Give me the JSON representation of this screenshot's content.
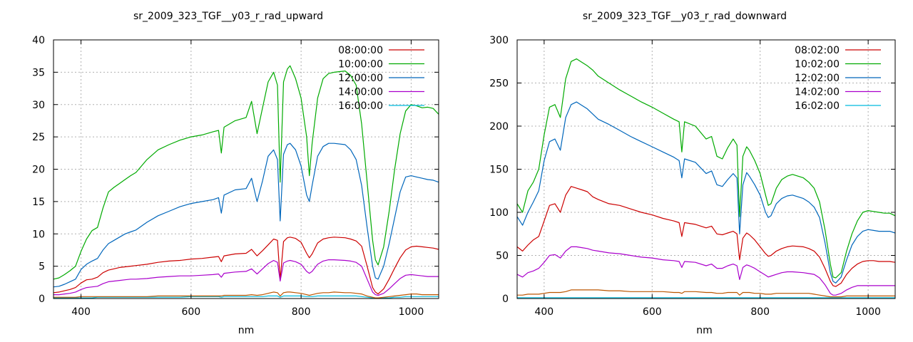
{
  "chart_data": [
    {
      "type": "line",
      "title": "sr_2009_323_TGF__y03_r_rad_upward",
      "xlabel": "nm",
      "ylabel": "",
      "xlim": [
        350,
        1050
      ],
      "ylim": [
        0,
        40
      ],
      "xticks": [
        400,
        600,
        800,
        1000
      ],
      "yticks": [
        0,
        5,
        10,
        15,
        20,
        25,
        30,
        35,
        40
      ],
      "grid": true,
      "legend_position": "top-right",
      "x": [
        350,
        360,
        370,
        380,
        390,
        400,
        410,
        420,
        430,
        440,
        450,
        460,
        470,
        480,
        490,
        500,
        520,
        540,
        560,
        580,
        600,
        620,
        640,
        650,
        655,
        660,
        680,
        700,
        710,
        720,
        730,
        740,
        750,
        757,
        762,
        768,
        775,
        780,
        790,
        800,
        810,
        815,
        820,
        830,
        840,
        850,
        860,
        880,
        890,
        900,
        910,
        920,
        930,
        935,
        940,
        950,
        960,
        970,
        980,
        990,
        1000,
        1010,
        1020,
        1030,
        1040,
        1050
      ],
      "series": [
        {
          "name": "08:00:00",
          "color": "#cc0000",
          "values": [
            0.9,
            1.0,
            1.2,
            1.4,
            1.7,
            2.4,
            2.9,
            3.0,
            3.3,
            4.0,
            4.4,
            4.6,
            4.8,
            4.9,
            5.0,
            5.1,
            5.3,
            5.6,
            5.8,
            5.9,
            6.1,
            6.2,
            6.4,
            6.5,
            5.7,
            6.6,
            6.9,
            7.0,
            7.6,
            6.6,
            7.4,
            8.3,
            9.2,
            9.0,
            2.9,
            8.8,
            9.4,
            9.5,
            9.3,
            8.7,
            7.0,
            6.3,
            6.9,
            8.6,
            9.2,
            9.4,
            9.5,
            9.4,
            9.2,
            8.9,
            8.1,
            5.0,
            1.7,
            1.0,
            0.7,
            1.5,
            3.0,
            4.7,
            6.3,
            7.5,
            8.0,
            8.1,
            8.0,
            7.9,
            7.8,
            7.6
          ]
        },
        {
          "name": "10:00:00",
          "color": "#00aa00",
          "values": [
            3.0,
            3.2,
            3.7,
            4.3,
            5.0,
            7.3,
            9.2,
            10.5,
            11.0,
            14.0,
            16.5,
            17.2,
            17.8,
            18.4,
            19.0,
            19.5,
            21.5,
            23.0,
            23.8,
            24.5,
            25.0,
            25.3,
            25.8,
            26.0,
            22.5,
            26.5,
            27.5,
            28.0,
            30.5,
            25.5,
            29.5,
            33.5,
            35.0,
            33.0,
            18.0,
            33.5,
            35.5,
            36.0,
            34.0,
            31.0,
            25.0,
            19.0,
            24.0,
            31.0,
            34.0,
            34.8,
            35.0,
            35.2,
            34.5,
            33.0,
            27.0,
            18.0,
            9.0,
            6.0,
            5.2,
            8.0,
            13.5,
            20.0,
            25.5,
            29.0,
            30.0,
            29.8,
            29.5,
            29.6,
            29.4,
            28.5
          ]
        },
        {
          "name": "12:00:00",
          "color": "#0066bb",
          "values": [
            1.8,
            1.9,
            2.2,
            2.6,
            3.0,
            4.5,
            5.3,
            5.8,
            6.2,
            7.5,
            8.5,
            9.0,
            9.5,
            10.0,
            10.3,
            10.6,
            11.8,
            12.8,
            13.5,
            14.2,
            14.7,
            15.0,
            15.3,
            15.6,
            13.2,
            16.0,
            16.8,
            17.0,
            18.6,
            15.0,
            18.2,
            22.0,
            23.0,
            21.5,
            12.0,
            22.3,
            23.8,
            24.0,
            23.0,
            20.5,
            16.0,
            15.0,
            17.5,
            22.0,
            23.5,
            24.0,
            24.0,
            23.8,
            23.0,
            21.5,
            17.5,
            11.0,
            5.0,
            3.2,
            3.0,
            5.0,
            8.5,
            12.5,
            16.5,
            18.8,
            19.0,
            18.8,
            18.6,
            18.4,
            18.3,
            18.0
          ]
        },
        {
          "name": "14:00:00",
          "color": "#aa00cc",
          "values": [
            0.6,
            0.6,
            0.7,
            0.8,
            1.0,
            1.4,
            1.7,
            1.8,
            1.9,
            2.3,
            2.6,
            2.7,
            2.8,
            2.9,
            3.0,
            3.0,
            3.1,
            3.3,
            3.4,
            3.5,
            3.5,
            3.6,
            3.7,
            3.8,
            3.3,
            3.9,
            4.1,
            4.2,
            4.6,
            3.8,
            4.6,
            5.4,
            5.9,
            5.6,
            2.7,
            5.5,
            5.8,
            5.9,
            5.7,
            5.3,
            4.2,
            3.9,
            4.2,
            5.3,
            5.8,
            6.0,
            6.0,
            5.9,
            5.8,
            5.6,
            5.0,
            3.0,
            1.0,
            0.6,
            0.5,
            0.8,
            1.5,
            2.3,
            3.1,
            3.6,
            3.7,
            3.6,
            3.5,
            3.4,
            3.4,
            3.4
          ]
        },
        {
          "name": "16:00:00",
          "color": "#00bbdd",
          "values": [
            0.1,
            0.1,
            0.1,
            0.1,
            0.1,
            0.1,
            0.1,
            0.1,
            0.2,
            0.2,
            0.2,
            0.2,
            0.2,
            0.2,
            0.2,
            0.2,
            0.2,
            0.2,
            0.2,
            0.2,
            0.3,
            0.3,
            0.3,
            0.3,
            0.2,
            0.3,
            0.3,
            0.3,
            0.3,
            0.3,
            0.3,
            0.4,
            0.4,
            0.4,
            0.2,
            0.4,
            0.4,
            0.4,
            0.4,
            0.4,
            0.3,
            0.3,
            0.3,
            0.4,
            0.4,
            0.4,
            0.4,
            0.4,
            0.4,
            0.4,
            0.3,
            0.2,
            0.1,
            0.1,
            0.1,
            0.1,
            0.1,
            0.2,
            0.2,
            0.3,
            0.3,
            0.3,
            0.3,
            0.3,
            0.3,
            0.3
          ]
        },
        {
          "name": "",
          "color": "#bb5500",
          "values": [
            0.2,
            0.2,
            0.2,
            0.2,
            0.2,
            0.3,
            0.3,
            0.3,
            0.3,
            0.3,
            0.3,
            0.3,
            0.3,
            0.3,
            0.3,
            0.3,
            0.3,
            0.4,
            0.4,
            0.4,
            0.4,
            0.4,
            0.4,
            0.4,
            0.4,
            0.5,
            0.5,
            0.5,
            0.6,
            0.5,
            0.6,
            0.8,
            1.0,
            0.9,
            0.4,
            0.9,
            1.0,
            1.0,
            0.9,
            0.8,
            0.6,
            0.5,
            0.6,
            0.8,
            0.9,
            0.9,
            1.0,
            0.9,
            0.9,
            0.8,
            0.7,
            0.4,
            0.2,
            0.1,
            0.1,
            0.2,
            0.3,
            0.4,
            0.5,
            0.6,
            0.7,
            0.7,
            0.6,
            0.6,
            0.6,
            0.6
          ]
        }
      ]
    },
    {
      "type": "line",
      "title": "sr_2009_323_TGF__y03_r_rad_downward",
      "xlabel": "nm",
      "ylabel": "",
      "xlim": [
        350,
        1050
      ],
      "ylim": [
        0,
        300
      ],
      "xticks": [
        400,
        600,
        800,
        1000
      ],
      "yticks": [
        0,
        50,
        100,
        150,
        200,
        250,
        300
      ],
      "grid": true,
      "legend_position": "top-right",
      "x": [
        350,
        360,
        370,
        380,
        390,
        400,
        410,
        420,
        430,
        440,
        450,
        460,
        470,
        480,
        490,
        500,
        520,
        540,
        560,
        580,
        600,
        620,
        640,
        650,
        655,
        660,
        680,
        700,
        710,
        720,
        730,
        740,
        750,
        757,
        762,
        768,
        775,
        780,
        790,
        800,
        810,
        815,
        820,
        830,
        840,
        850,
        860,
        880,
        890,
        900,
        910,
        920,
        930,
        935,
        940,
        950,
        960,
        970,
        980,
        990,
        1000,
        1010,
        1020,
        1030,
        1040,
        1050
      ],
      "series": [
        {
          "name": "08:02:00",
          "color": "#cc0000",
          "values": [
            60,
            55,
            62,
            68,
            72,
            90,
            108,
            110,
            100,
            120,
            130,
            128,
            126,
            124,
            118,
            115,
            110,
            108,
            104,
            100,
            97,
            93,
            90,
            88,
            72,
            88,
            86,
            82,
            84,
            75,
            74,
            76,
            78,
            75,
            45,
            70,
            76,
            74,
            68,
            60,
            52,
            49,
            50,
            55,
            58,
            60,
            61,
            60,
            58,
            55,
            48,
            35,
            20,
            15,
            14,
            18,
            28,
            35,
            40,
            43,
            44,
            44,
            43,
            43,
            43,
            42
          ]
        },
        {
          "name": "10:02:00",
          "color": "#00aa00",
          "values": [
            110,
            100,
            125,
            135,
            150,
            190,
            222,
            225,
            210,
            255,
            275,
            278,
            274,
            270,
            265,
            258,
            250,
            242,
            235,
            228,
            222,
            215,
            208,
            205,
            170,
            205,
            200,
            185,
            188,
            165,
            162,
            175,
            185,
            178,
            95,
            165,
            176,
            172,
            160,
            145,
            120,
            108,
            110,
            128,
            138,
            142,
            144,
            140,
            135,
            128,
            112,
            80,
            40,
            25,
            24,
            30,
            55,
            75,
            90,
            100,
            102,
            101,
            100,
            99,
            99,
            96
          ]
        },
        {
          "name": "12:02:00",
          "color": "#0066bb",
          "values": [
            95,
            85,
            100,
            112,
            125,
            160,
            182,
            185,
            172,
            210,
            225,
            228,
            224,
            220,
            214,
            208,
            202,
            195,
            188,
            182,
            176,
            170,
            164,
            160,
            140,
            162,
            158,
            145,
            148,
            132,
            130,
            138,
            145,
            140,
            75,
            132,
            146,
            142,
            132,
            120,
            100,
            94,
            96,
            110,
            116,
            119,
            120,
            116,
            112,
            106,
            94,
            65,
            30,
            20,
            18,
            25,
            45,
            62,
            72,
            78,
            80,
            79,
            78,
            78,
            78,
            76
          ]
        },
        {
          "name": "14:02:00",
          "color": "#aa00cc",
          "values": [
            28,
            25,
            30,
            32,
            35,
            42,
            50,
            51,
            47,
            55,
            60,
            60,
            59,
            58,
            56,
            55,
            53,
            52,
            50,
            48,
            47,
            45,
            44,
            43,
            36,
            43,
            42,
            38,
            40,
            35,
            35,
            38,
            40,
            38,
            22,
            36,
            39,
            38,
            35,
            31,
            27,
            25,
            26,
            28,
            30,
            31,
            31,
            30,
            29,
            28,
            24,
            16,
            6,
            4,
            4,
            6,
            10,
            13,
            15,
            15,
            15,
            15,
            15,
            15,
            15,
            15
          ]
        },
        {
          "name": "16:02:00",
          "color": "#00bbdd",
          "values": [
            1,
            1,
            1,
            1,
            1,
            1,
            1,
            1,
            1,
            1,
            1,
            1,
            1,
            1,
            1,
            1,
            1,
            1,
            1,
            1,
            1,
            1,
            1,
            1,
            1,
            1,
            1,
            1,
            1,
            1,
            1,
            1,
            1,
            1,
            1,
            1,
            1,
            1,
            1,
            1,
            1,
            1,
            1,
            1,
            1,
            1,
            1,
            1,
            1,
            1,
            1,
            1,
            1,
            1,
            1,
            1,
            1,
            1,
            1,
            1,
            1,
            1,
            1,
            1,
            1,
            1
          ]
        },
        {
          "name": "",
          "color": "#bb5500",
          "values": [
            4,
            4,
            5,
            5,
            5,
            6,
            7,
            7,
            7,
            8,
            10,
            10,
            10,
            10,
            10,
            10,
            9,
            9,
            8,
            8,
            8,
            8,
            7,
            7,
            6,
            8,
            8,
            7,
            7,
            6,
            6,
            7,
            7,
            7,
            4,
            7,
            7,
            7,
            6,
            6,
            5,
            5,
            5,
            6,
            6,
            6,
            6,
            6,
            6,
            5,
            4,
            3,
            2,
            2,
            2,
            2,
            3,
            3,
            3,
            3,
            3,
            3,
            3,
            3,
            3,
            3
          ]
        }
      ]
    }
  ]
}
